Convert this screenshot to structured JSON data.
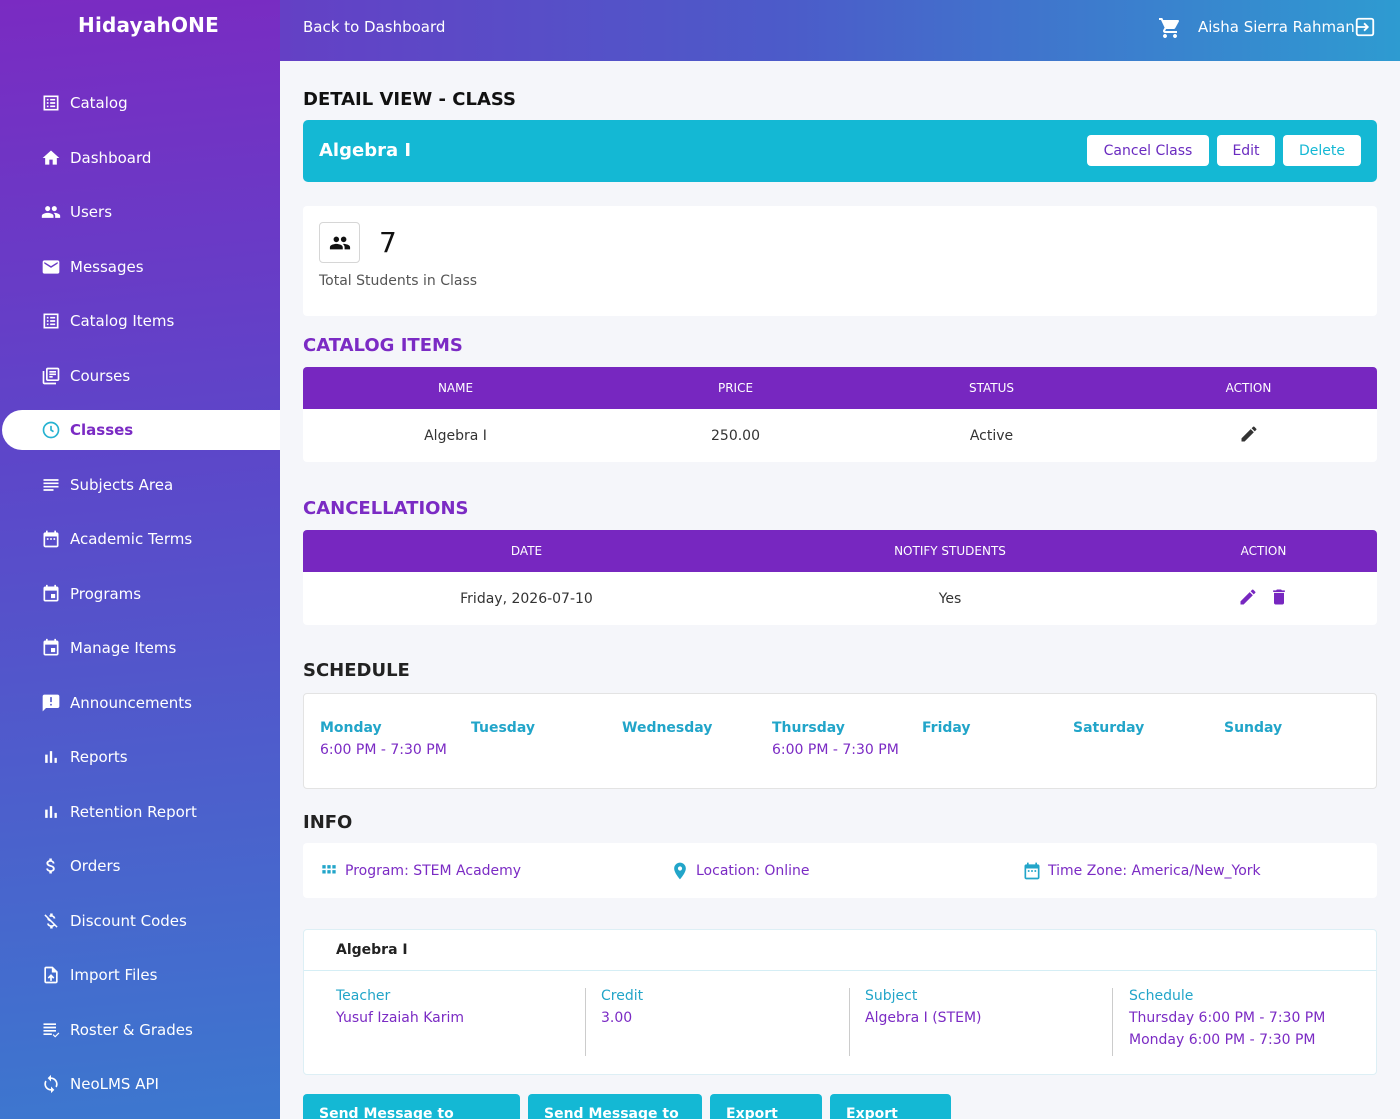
{
  "app": {
    "brand": "HidayahONE"
  },
  "topbar": {
    "back_label": "Back to Dashboard",
    "user_name": "Aisha Sierra Rahman"
  },
  "sidebar": {
    "items": [
      {
        "label": "Catalog",
        "icon": "list-icon"
      },
      {
        "label": "Dashboard",
        "icon": "home-icon"
      },
      {
        "label": "Users",
        "icon": "users-icon"
      },
      {
        "label": "Messages",
        "icon": "mail-icon"
      },
      {
        "label": "Catalog Items",
        "icon": "list-icon"
      },
      {
        "label": "Courses",
        "icon": "library-icon"
      },
      {
        "label": "Classes",
        "icon": "clock-icon",
        "active": true
      },
      {
        "label": "Subjects Area",
        "icon": "lines-icon"
      },
      {
        "label": "Academic Terms",
        "icon": "calendar-icon"
      },
      {
        "label": "Programs",
        "icon": "event-icon"
      },
      {
        "label": "Manage Items",
        "icon": "event-icon"
      },
      {
        "label": "Announcements",
        "icon": "announcement-icon"
      },
      {
        "label": "Reports",
        "icon": "bar-chart-icon"
      },
      {
        "label": "Retention Report",
        "icon": "bar-chart-icon"
      },
      {
        "label": "Orders",
        "icon": "dollar-icon"
      },
      {
        "label": "Discount Codes",
        "icon": "money-off-icon"
      },
      {
        "label": "Import Files",
        "icon": "upload-file-icon"
      },
      {
        "label": "Roster & Grades",
        "icon": "roster-icon"
      },
      {
        "label": "NeoLMS API",
        "icon": "sync-icon"
      }
    ]
  },
  "main": {
    "page_title": "DETAIL VIEW - CLASS",
    "class_name": "Algebra I",
    "buttons": {
      "cancel_class": "Cancel Class",
      "edit": "Edit",
      "delete": "Delete"
    },
    "stat": {
      "value": "7",
      "label": "Total Students in Class"
    },
    "catalog_items": {
      "title": "CATALOG ITEMS",
      "headers": [
        "NAME",
        "PRICE",
        "STATUS",
        "ACTION"
      ],
      "rows": [
        {
          "name": "Algebra I",
          "price": "250.00",
          "status": "Active"
        }
      ]
    },
    "cancellations": {
      "title": "CANCELLATIONS",
      "headers": [
        "DATE",
        "NOTIFY STUDENTS",
        "ACTION"
      ],
      "rows": [
        {
          "date": "Friday, 2026-07-10",
          "notify": "Yes"
        }
      ]
    },
    "schedule": {
      "title": "SCHEDULE",
      "days": [
        {
          "name": "Monday",
          "time": "6:00 PM - 7:30 PM"
        },
        {
          "name": "Tuesday",
          "time": ""
        },
        {
          "name": "Wednesday",
          "time": ""
        },
        {
          "name": "Thursday",
          "time": "6:00 PM - 7:30 PM"
        },
        {
          "name": "Friday",
          "time": ""
        },
        {
          "name": "Saturday",
          "time": ""
        },
        {
          "name": "Sunday",
          "time": ""
        }
      ]
    },
    "info": {
      "title": "INFO",
      "program": "Program: STEM Academy",
      "location": "Location: Online",
      "timezone": "Time Zone: America/New_York"
    },
    "summary": {
      "title": "Algebra I",
      "teacher_label": "Teacher",
      "teacher": "Yusuf Izaiah Karim",
      "credit_label": "Credit",
      "credit": "3.00",
      "subject_label": "Subject",
      "subject": "Algebra I (STEM)",
      "schedule_label": "Schedule",
      "schedule_1": "Thursday 6:00 PM - 7:30 PM",
      "schedule_2": "Monday 6:00 PM - 7:30 PM"
    },
    "actions": {
      "send_selected": "Send Message to Selected",
      "send_all": "Send Message to All",
      "export_csv": "Export CSV",
      "export_excel": "Export Excel"
    }
  },
  "colors": {
    "primary_purple": "#7727c0",
    "accent_cyan": "#14b8d4",
    "link_blue": "#22a5c9"
  }
}
